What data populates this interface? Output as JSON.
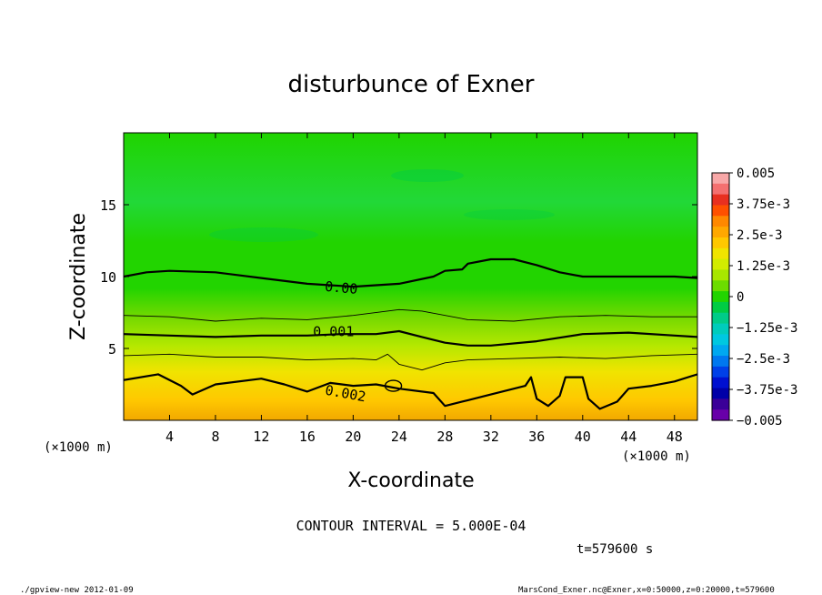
{
  "chart_data": {
    "type": "contour",
    "title": "disturbunce of Exner",
    "xlabel": "X-coordinate",
    "ylabel": "Z-coordinate",
    "x_unit": "(×1000 m)",
    "x_unit_left": "(×1000 m)",
    "xlim": [
      0,
      50
    ],
    "ylim": [
      0,
      20
    ],
    "x_ticks": [
      4,
      8,
      12,
      16,
      20,
      24,
      28,
      32,
      36,
      40,
      44,
      48
    ],
    "y_ticks": [
      5,
      10,
      15
    ],
    "contour_interval_text": "CONTOUR INTERVAL = 5.000E-04",
    "time_text": "t=579600 s",
    "footer_left": "./gpview-new  2012-01-09",
    "footer_right": "MarsCond_Exner.nc@Exner,x=0:50000,z=0:20000,t=579600",
    "colorbar": {
      "min": -0.005,
      "max": 0.005,
      "labels": [
        "0.005",
        "3.75e-3",
        "2.5e-3",
        "1.25e-3",
        "0",
        "−1.25e-3",
        "−2.5e-3",
        "−3.75e-3",
        "−0.005"
      ],
      "colors": [
        "#f8a8a8",
        "#f47070",
        "#e83020",
        "#ff5000",
        "#ff8800",
        "#ffa800",
        "#ffc800",
        "#f0e400",
        "#d2ec00",
        "#a8e600",
        "#6cdc00",
        "#22d400",
        "#00cc44",
        "#00cc88",
        "#00ccbb",
        "#00c8e0",
        "#00a8f0",
        "#0078f0",
        "#0040e8",
        "#0010d0",
        "#0000a8",
        "#3a0098",
        "#6800a8"
      ]
    },
    "contour_labels": [
      "0.00",
      "0.001",
      "0.002"
    ],
    "contours": [
      {
        "level": 0.0,
        "bold": true,
        "label": "0.00",
        "points": [
          [
            0,
            10.0
          ],
          [
            2,
            10.3
          ],
          [
            4,
            10.4
          ],
          [
            8,
            10.3
          ],
          [
            12,
            9.9
          ],
          [
            16,
            9.5
          ],
          [
            20,
            9.3
          ],
          [
            24,
            9.5
          ],
          [
            27,
            10.0
          ],
          [
            28,
            10.4
          ],
          [
            29.5,
            10.5
          ],
          [
            30,
            10.9
          ],
          [
            32,
            11.2
          ],
          [
            34,
            11.2
          ],
          [
            36,
            10.8
          ],
          [
            38,
            10.3
          ],
          [
            40,
            10.0
          ],
          [
            44,
            10.0
          ],
          [
            48,
            10.0
          ],
          [
            50,
            9.9
          ]
        ]
      },
      {
        "level": 0.0005,
        "bold": false,
        "points": [
          [
            0,
            7.3
          ],
          [
            4,
            7.2
          ],
          [
            8,
            6.9
          ],
          [
            12,
            7.1
          ],
          [
            16,
            7.0
          ],
          [
            20,
            7.3
          ],
          [
            24,
            7.7
          ],
          [
            26,
            7.6
          ],
          [
            30,
            7.0
          ],
          [
            34,
            6.9
          ],
          [
            38,
            7.2
          ],
          [
            42,
            7.3
          ],
          [
            46,
            7.2
          ],
          [
            50,
            7.2
          ]
        ]
      },
      {
        "level": 0.001,
        "bold": true,
        "label": "0.001",
        "points": [
          [
            0,
            6.0
          ],
          [
            4,
            5.9
          ],
          [
            8,
            5.8
          ],
          [
            12,
            5.9
          ],
          [
            16,
            5.9
          ],
          [
            19,
            6.0
          ],
          [
            22,
            6.0
          ],
          [
            24,
            6.2
          ],
          [
            26,
            5.8
          ],
          [
            28,
            5.4
          ],
          [
            30,
            5.2
          ],
          [
            32,
            5.2
          ],
          [
            36,
            5.5
          ],
          [
            40,
            6.0
          ],
          [
            44,
            6.1
          ],
          [
            48,
            5.9
          ],
          [
            50,
            5.8
          ]
        ]
      },
      {
        "level": 0.0015,
        "bold": false,
        "points": [
          [
            0,
            4.5
          ],
          [
            4,
            4.6
          ],
          [
            8,
            4.4
          ],
          [
            12,
            4.4
          ],
          [
            16,
            4.2
          ],
          [
            20,
            4.3
          ],
          [
            22,
            4.2
          ],
          [
            23,
            4.6
          ],
          [
            24,
            3.9
          ],
          [
            26,
            3.5
          ],
          [
            28,
            4.0
          ],
          [
            30,
            4.2
          ],
          [
            34,
            4.3
          ],
          [
            38,
            4.4
          ],
          [
            42,
            4.3
          ],
          [
            46,
            4.5
          ],
          [
            50,
            4.6
          ]
        ]
      },
      {
        "level": 0.002,
        "bold": true,
        "label": "0.002",
        "points": [
          [
            0,
            2.8
          ],
          [
            3,
            3.2
          ],
          [
            5,
            2.4
          ],
          [
            6,
            1.8
          ],
          [
            8,
            2.5
          ],
          [
            12,
            2.9
          ],
          [
            14,
            2.5
          ],
          [
            16,
            2.0
          ],
          [
            18,
            2.6
          ],
          [
            20,
            2.4
          ],
          [
            22,
            2.5
          ],
          [
            24,
            2.2
          ],
          [
            27,
            1.9
          ],
          [
            28,
            1.0
          ],
          [
            30,
            1.4
          ],
          [
            32,
            1.8
          ],
          [
            35,
            2.4
          ],
          [
            35.5,
            3.0
          ],
          [
            36,
            1.5
          ],
          [
            37,
            1.0
          ],
          [
            38,
            1.7
          ],
          [
            38.5,
            3.0
          ],
          [
            40,
            3.0
          ],
          [
            40.5,
            1.5
          ],
          [
            41.5,
            0.8
          ],
          [
            43,
            1.3
          ],
          [
            44,
            2.2
          ],
          [
            46,
            2.4
          ],
          [
            48,
            2.7
          ],
          [
            50,
            3.2
          ]
        ]
      }
    ]
  }
}
